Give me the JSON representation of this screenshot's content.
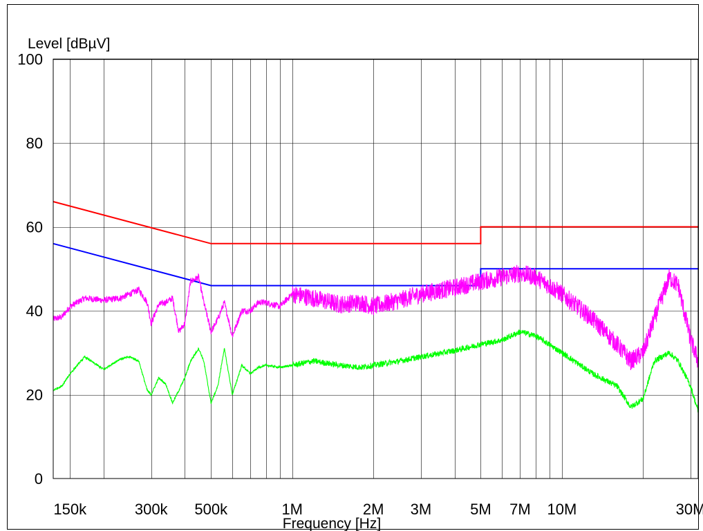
{
  "chart_data": {
    "type": "line",
    "xlabel": "Frequency [Hz]",
    "ylabel": "Level [dBµV]",
    "x_scale": "log",
    "xlim": [
      130000,
      32000000
    ],
    "ylim": [
      0,
      100
    ],
    "grid": true,
    "x_ticks": [
      {
        "value": 150000,
        "label": "150k"
      },
      {
        "value": 300000,
        "label": "300k"
      },
      {
        "value": 500000,
        "label": "500k"
      },
      {
        "value": 1000000,
        "label": "1M"
      },
      {
        "value": 2000000,
        "label": "2M"
      },
      {
        "value": 3000000,
        "label": "3M"
      },
      {
        "value": 5000000,
        "label": "5M"
      },
      {
        "value": 7000000,
        "label": "7M"
      },
      {
        "value": 10000000,
        "label": "10M"
      },
      {
        "value": 30000000,
        "label": "30M"
      }
    ],
    "x_gridlines": [
      150000,
      200000,
      300000,
      400000,
      500000,
      600000,
      700000,
      800000,
      900000,
      1000000,
      2000000,
      3000000,
      4000000,
      5000000,
      6000000,
      7000000,
      8000000,
      9000000,
      10000000,
      20000000,
      30000000
    ],
    "y_ticks": [
      {
        "value": 0,
        "label": "0"
      },
      {
        "value": 20,
        "label": "20"
      },
      {
        "value": 40,
        "label": "40"
      },
      {
        "value": 60,
        "label": "60"
      },
      {
        "value": 80,
        "label": "80"
      },
      {
        "value": 100,
        "label": "100"
      }
    ],
    "y_gridlines": [
      20,
      40,
      60,
      80,
      100
    ],
    "series": [
      {
        "color": "#ff0000",
        "style": "limit",
        "x": [
          130000,
          500000,
          500000,
          5000000,
          5000000,
          32000000
        ],
        "y": [
          66,
          56,
          56,
          56,
          60,
          60
        ]
      },
      {
        "color": "#0000ff",
        "style": "limit",
        "x": [
          130000,
          500000,
          500000,
          5000000,
          5000000,
          32000000
        ],
        "y": [
          56,
          46,
          46,
          46,
          50,
          50
        ]
      },
      {
        "color": "#ff00ff",
        "style": "noisy",
        "noise": 2.2,
        "x": [
          130000,
          140000,
          150000,
          170000,
          200000,
          230000,
          250000,
          270000,
          290000,
          300000,
          320000,
          340000,
          360000,
          380000,
          400000,
          420000,
          450000,
          470000,
          500000,
          530000,
          560000,
          600000,
          650000,
          700000,
          750000,
          800000,
          900000,
          1000000,
          1200000,
          1500000,
          1800000,
          2000000,
          2500000,
          3000000,
          4000000,
          5000000,
          6000000,
          7000000,
          8000000,
          10000000,
          13000000,
          16000000,
          18000000,
          20000000,
          22000000,
          25000000,
          27000000,
          30000000,
          32000000
        ],
        "y": [
          38,
          38.5,
          41,
          43,
          42.5,
          43,
          44,
          45,
          42,
          37,
          41.5,
          42,
          43,
          35,
          37,
          47,
          48,
          42,
          35,
          38,
          42,
          34,
          40,
          40,
          42,
          42,
          41,
          44,
          43,
          41.5,
          42,
          41,
          42.5,
          44,
          45.5,
          47,
          48,
          49,
          48,
          44,
          38,
          32,
          28,
          30,
          38,
          48,
          46,
          33,
          28
        ],
        "points": 2600
      },
      {
        "color": "#00ff00",
        "style": "noisy",
        "noise": 0.7,
        "x": [
          130000,
          140000,
          150000,
          170000,
          200000,
          230000,
          250000,
          270000,
          290000,
          300000,
          320000,
          340000,
          360000,
          380000,
          400000,
          420000,
          450000,
          470000,
          500000,
          530000,
          560000,
          600000,
          650000,
          700000,
          750000,
          800000,
          900000,
          1000000,
          1200000,
          1500000,
          1800000,
          2000000,
          2500000,
          3000000,
          4000000,
          5000000,
          6000000,
          7000000,
          8000000,
          10000000,
          13000000,
          16000000,
          18000000,
          20000000,
          22000000,
          25000000,
          27000000,
          30000000,
          32000000
        ],
        "y": [
          21,
          22,
          25,
          29,
          26,
          28.5,
          29,
          28,
          21,
          20,
          24,
          22.5,
          18,
          21,
          24,
          28,
          31,
          28,
          18,
          22,
          31,
          20,
          27,
          25,
          26.5,
          27,
          26.5,
          27,
          28,
          27,
          26.5,
          27,
          28,
          29,
          30.5,
          32,
          33,
          35,
          34,
          30,
          25,
          22,
          17,
          19,
          28,
          30,
          28,
          22,
          16
        ],
        "points": 2600
      }
    ]
  }
}
